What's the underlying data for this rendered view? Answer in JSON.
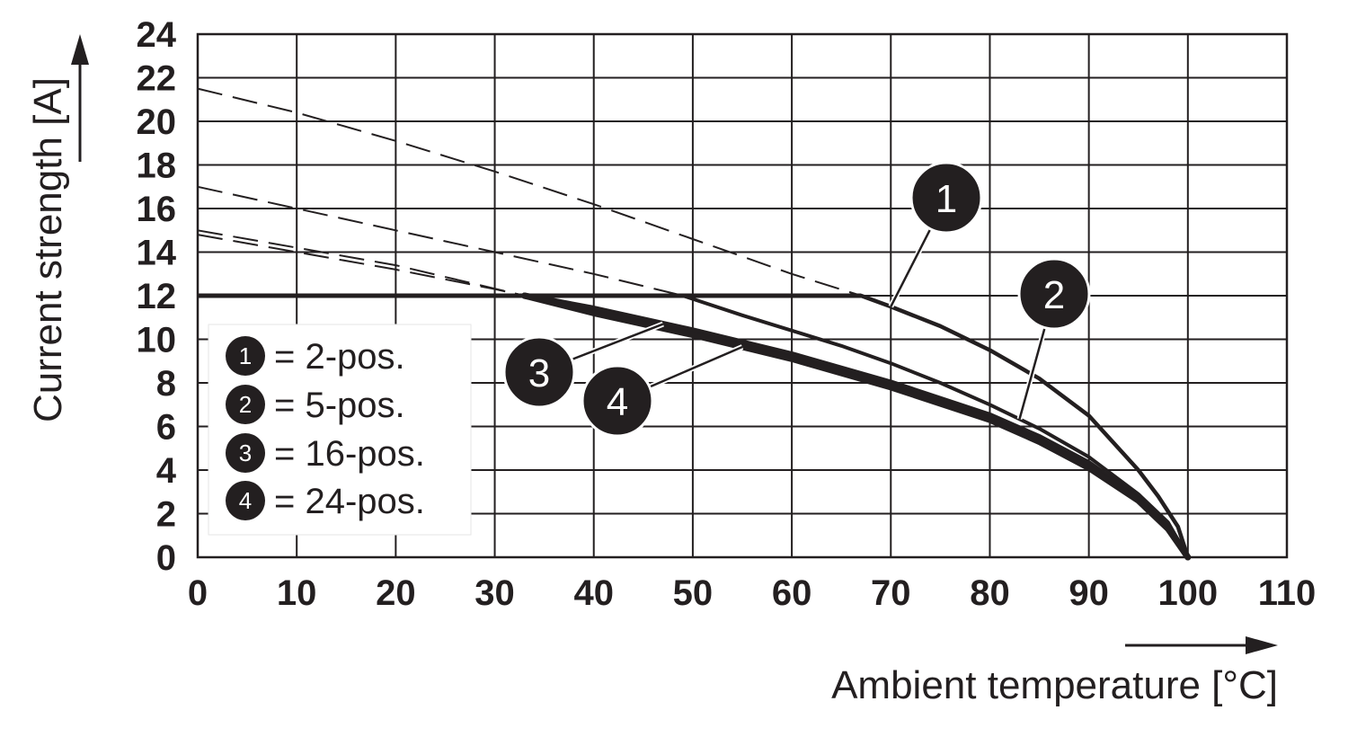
{
  "chart_data": {
    "type": "line",
    "xlabel": "Ambient temperature [°C]",
    "ylabel": "Current strength [A]",
    "xlim": [
      0,
      110
    ],
    "ylim": [
      0,
      24
    ],
    "xticks": [
      0,
      10,
      20,
      30,
      40,
      50,
      60,
      70,
      80,
      90,
      100,
      110
    ],
    "yticks": [
      0,
      2,
      4,
      6,
      8,
      10,
      12,
      14,
      16,
      18,
      20,
      22,
      24
    ],
    "grid": true,
    "legend_position": "left",
    "colors": {
      "line": "#231f20",
      "grid": "#231f20",
      "background": "#ffffff"
    },
    "limit": {
      "x": [
        0,
        67
      ],
      "y": [
        12,
        12
      ]
    },
    "series": [
      {
        "name": "2-pos.",
        "marker": "1",
        "x": [
          0,
          10,
          20,
          30,
          40,
          50,
          60,
          67,
          70,
          75,
          80,
          85,
          90,
          95,
          97,
          99,
          100
        ],
        "y": [
          21.5,
          20.4,
          19.1,
          17.7,
          16.2,
          14.6,
          13.0,
          12.0,
          11.5,
          10.6,
          9.5,
          8.2,
          6.5,
          4.0,
          2.8,
          1.4,
          0
        ]
      },
      {
        "name": "5-pos.",
        "marker": "2",
        "x": [
          0,
          10,
          20,
          30,
          40,
          49,
          55,
          60,
          65,
          70,
          75,
          80,
          85,
          90,
          95,
          98,
          100
        ],
        "y": [
          17,
          16.0,
          15.0,
          14.0,
          13.0,
          12.0,
          11.1,
          10.4,
          9.7,
          8.9,
          8.0,
          7.0,
          5.9,
          4.6,
          2.9,
          1.6,
          0
        ]
      },
      {
        "name": "16-pos.",
        "marker": "3",
        "x": [
          0,
          10,
          20,
          33,
          40,
          50,
          60,
          70,
          80,
          85,
          90,
          95,
          98,
          100
        ],
        "y": [
          15,
          14.2,
          13.4,
          12.0,
          11.4,
          10.4,
          9.3,
          8.0,
          6.5,
          5.5,
          4.3,
          2.7,
          1.4,
          0
        ]
      },
      {
        "name": "24-pos.",
        "marker": "4",
        "x": [
          0,
          10,
          20,
          30,
          33,
          40,
          50,
          60,
          70,
          80,
          85,
          90,
          95,
          98,
          100
        ],
        "y": [
          14.8,
          14.0,
          13.2,
          12.3,
          12.0,
          11.2,
          10.2,
          9.1,
          7.8,
          6.3,
          5.3,
          4.1,
          2.6,
          1.3,
          0
        ]
      }
    ],
    "legend": [
      {
        "marker": "1",
        "text": "= 2-pos."
      },
      {
        "marker": "2",
        "text": "= 5-pos."
      },
      {
        "marker": "3",
        "text": "= 16-pos."
      },
      {
        "marker": "4",
        "text": "= 24-pos."
      }
    ]
  }
}
